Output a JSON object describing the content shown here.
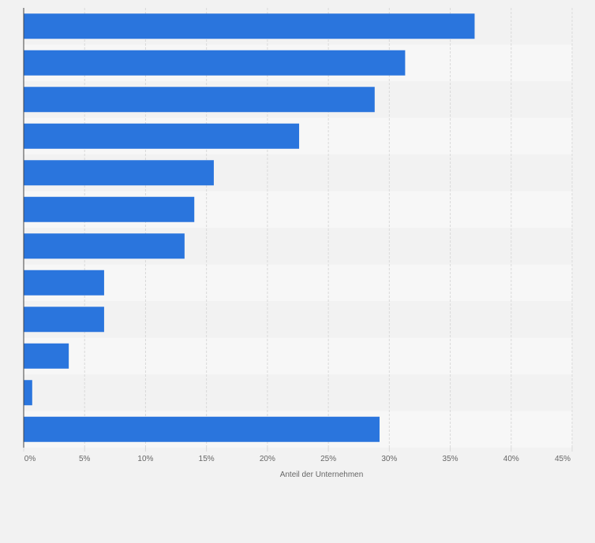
{
  "chart_data": {
    "type": "bar",
    "orientation": "horizontal",
    "title": "",
    "categories": [
      "",
      "",
      "",
      "",
      "",
      "",
      "",
      "",
      "",
      "",
      "",
      ""
    ],
    "values": [
      37,
      31.3,
      28.8,
      22.6,
      15.6,
      14.0,
      13.2,
      6.6,
      6.6,
      3.7,
      0.7,
      29.2
    ],
    "xlabel": "Anteil der Unternehmen",
    "ylabel": "",
    "xlim": [
      0,
      45
    ],
    "xticks": [
      0,
      5,
      10,
      15,
      20,
      25,
      30,
      35,
      40,
      45
    ],
    "xtick_labels": [
      "0%",
      "5%",
      "10%",
      "15%",
      "20%",
      "25%",
      "30%",
      "35%",
      "40%",
      "45%"
    ],
    "grid": true,
    "legend": "none"
  },
  "colors": {
    "bar": "#2a75dd",
    "band_dark": "#f2f2f2",
    "band_light": "#f7f7f7",
    "grid": "#d9d9d9",
    "axis": "#444444",
    "text": "#666666"
  }
}
